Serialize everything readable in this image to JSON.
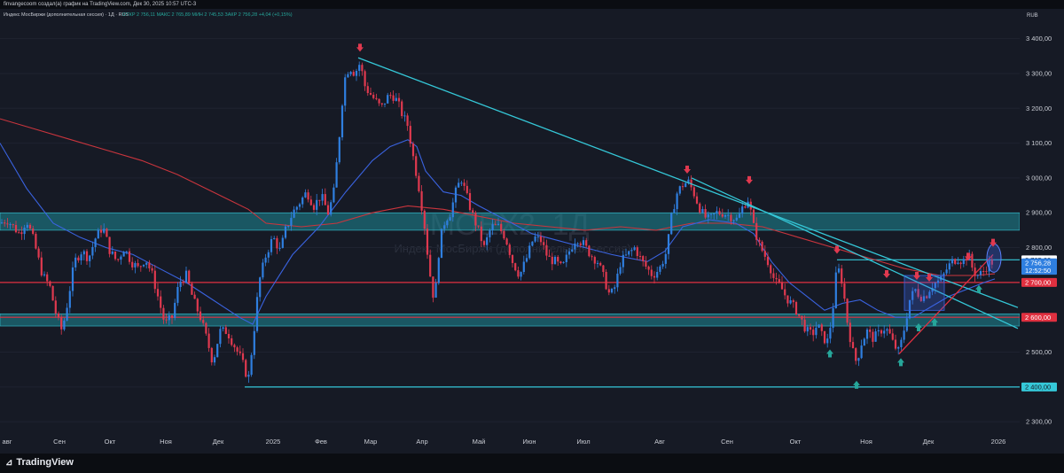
{
  "header": {
    "text": "finvangecoom создал(а) график на TradingView.com, Дек 30, 2025 10:57 UTC-3"
  },
  "legend": {
    "title": "Индекс МосБиржи (дополнительная сессия) · 1Д · RUS",
    "values": "ОТКР 2 756,11  МАКС 2 765,89  МИН 2 745,53  ЗАКР 2 756,28  +4,04 (+0,15%)"
  },
  "currency": "RUB",
  "watermark": {
    "symbol": "IMOEX2, 1Д",
    "name": "Индекс МосБиржи (дополнительная сессия)"
  },
  "footer": {
    "brand": "TradingView"
  },
  "colors": {
    "background": "#161a25",
    "up": "#2f7fe0",
    "down": "#e0394f",
    "trendline": "#35c8d8",
    "red_line": "#e03040",
    "zone_fill": "#1f8a97",
    "ma_fast": "#3a63e0",
    "ma_slow": "#c9353d"
  },
  "chart_data": {
    "type": "candlestick",
    "x_axis_labels": [
      "авг",
      "Сен",
      "Окт",
      "Ноя",
      "Дек",
      "2025",
      "Фев",
      "Мар",
      "Апр",
      "Май",
      "Июн",
      "Июл",
      "Авг",
      "Сен",
      "Окт",
      "Ноя",
      "Дек",
      "2026"
    ],
    "y_ticks": [
      "3 400,00",
      "3 300,00",
      "3 200,00",
      "3 100,00",
      "3 000,00",
      "2 900,00",
      "2 800,00",
      "2 700,00",
      "2 600,00",
      "2 500,00",
      "2 400,00",
      "2 300,00"
    ],
    "y_tick_values": [
      3400,
      3300,
      3200,
      3100,
      3000,
      2900,
      2800,
      2700,
      2600,
      2500,
      2400,
      2300
    ],
    "ylim": [
      2275,
      3455
    ],
    "price_labels": [
      {
        "text": "2 765,00",
        "value": 2765,
        "color": "#ffffff",
        "fg": "#161a25"
      },
      {
        "text": "2 756,28",
        "value": 2756.28,
        "color": "#2f7fe0",
        "fg": "#ffffff"
      },
      {
        "text": "12:52:50",
        "value": 2735,
        "color": "#2f7fe0",
        "fg": "#ffffff"
      },
      {
        "text": "2 700,00",
        "value": 2700,
        "color": "#e03040",
        "fg": "#ffffff"
      },
      {
        "text": "2 600,00",
        "value": 2600,
        "color": "#e03040",
        "fg": "#ffffff"
      },
      {
        "text": "2 400,00",
        "value": 2400,
        "color": "#35c8d8",
        "fg": "#161a25"
      }
    ],
    "price_path": [
      [
        0,
        2870
      ],
      [
        8,
        2880
      ],
      [
        15,
        2860
      ],
      [
        22,
        2840
      ],
      [
        30,
        2880
      ],
      [
        38,
        2820
      ],
      [
        48,
        2720
      ],
      [
        56,
        2690
      ],
      [
        64,
        2600
      ],
      [
        70,
        2560
      ],
      [
        76,
        2640
      ],
      [
        84,
        2760
      ],
      [
        92,
        2790
      ],
      [
        100,
        2770
      ],
      [
        108,
        2830
      ],
      [
        116,
        2860
      ],
      [
        124,
        2790
      ],
      [
        132,
        2760
      ],
      [
        140,
        2800
      ],
      [
        148,
        2760
      ],
      [
        156,
        2740
      ],
      [
        164,
        2770
      ],
      [
        172,
        2720
      ],
      [
        178,
        2660
      ],
      [
        186,
        2580
      ],
      [
        194,
        2600
      ],
      [
        202,
        2700
      ],
      [
        210,
        2720
      ],
      [
        218,
        2650
      ],
      [
        226,
        2600
      ],
      [
        234,
        2530
      ],
      [
        240,
        2470
      ],
      [
        248,
        2560
      ],
      [
        256,
        2560
      ],
      [
        264,
        2520
      ],
      [
        272,
        2480
      ],
      [
        280,
        2420
      ],
      [
        286,
        2550
      ],
      [
        292,
        2700
      ],
      [
        300,
        2780
      ],
      [
        308,
        2830
      ],
      [
        316,
        2790
      ],
      [
        322,
        2850
      ],
      [
        330,
        2900
      ],
      [
        338,
        2930
      ],
      [
        346,
        2960
      ],
      [
        354,
        2920
      ],
      [
        362,
        2950
      ],
      [
        370,
        2900
      ],
      [
        376,
        2950
      ],
      [
        382,
        3100
      ],
      [
        388,
        3280
      ],
      [
        394,
        3320
      ],
      [
        400,
        3300
      ],
      [
        406,
        3330
      ],
      [
        412,
        3260
      ],
      [
        418,
        3240
      ],
      [
        424,
        3220
      ],
      [
        430,
        3200
      ],
      [
        436,
        3230
      ],
      [
        442,
        3240
      ],
      [
        448,
        3220
      ],
      [
        454,
        3180
      ],
      [
        460,
        3150
      ],
      [
        466,
        3060
      ],
      [
        472,
        2980
      ],
      [
        478,
        2880
      ],
      [
        484,
        2740
      ],
      [
        490,
        2640
      ],
      [
        496,
        2820
      ],
      [
        502,
        2880
      ],
      [
        508,
        2900
      ],
      [
        514,
        2960
      ],
      [
        520,
        3000
      ],
      [
        526,
        2950
      ],
      [
        532,
        2900
      ],
      [
        538,
        2860
      ],
      [
        546,
        2800
      ],
      [
        554,
        2860
      ],
      [
        562,
        2860
      ],
      [
        570,
        2830
      ],
      [
        578,
        2760
      ],
      [
        586,
        2720
      ],
      [
        594,
        2770
      ],
      [
        602,
        2830
      ],
      [
        610,
        2820
      ],
      [
        618,
        2770
      ],
      [
        626,
        2760
      ],
      [
        634,
        2740
      ],
      [
        642,
        2790
      ],
      [
        650,
        2830
      ],
      [
        658,
        2810
      ],
      [
        666,
        2780
      ],
      [
        674,
        2760
      ],
      [
        680,
        2720
      ],
      [
        688,
        2660
      ],
      [
        694,
        2690
      ],
      [
        700,
        2760
      ],
      [
        708,
        2780
      ],
      [
        716,
        2800
      ],
      [
        724,
        2760
      ],
      [
        730,
        2740
      ],
      [
        736,
        2720
      ],
      [
        744,
        2740
      ],
      [
        752,
        2790
      ],
      [
        758,
        2900
      ],
      [
        764,
        2960
      ],
      [
        770,
        2980
      ],
      [
        776,
        2990
      ],
      [
        782,
        2960
      ],
      [
        788,
        2920
      ],
      [
        794,
        2890
      ],
      [
        800,
        2880
      ],
      [
        808,
        2900
      ],
      [
        816,
        2900
      ],
      [
        824,
        2890
      ],
      [
        832,
        2880
      ],
      [
        838,
        2920
      ],
      [
        844,
        2940
      ],
      [
        850,
        2860
      ],
      [
        856,
        2810
      ],
      [
        862,
        2780
      ],
      [
        868,
        2750
      ],
      [
        874,
        2700
      ],
      [
        880,
        2690
      ],
      [
        886,
        2660
      ],
      [
        892,
        2640
      ],
      [
        898,
        2620
      ],
      [
        904,
        2590
      ],
      [
        910,
        2560
      ],
      [
        916,
        2550
      ],
      [
        922,
        2580
      ],
      [
        928,
        2540
      ],
      [
        934,
        2530
      ],
      [
        940,
        2640
      ],
      [
        944,
        2750
      ],
      [
        950,
        2700
      ],
      [
        956,
        2580
      ],
      [
        962,
        2500
      ],
      [
        966,
        2470
      ],
      [
        972,
        2530
      ],
      [
        978,
        2560
      ],
      [
        984,
        2540
      ],
      [
        990,
        2550
      ],
      [
        996,
        2570
      ],
      [
        1002,
        2560
      ],
      [
        1008,
        2520
      ],
      [
        1014,
        2500
      ],
      [
        1020,
        2570
      ],
      [
        1026,
        2650
      ],
      [
        1032,
        2680
      ],
      [
        1038,
        2660
      ],
      [
        1044,
        2660
      ],
      [
        1050,
        2690
      ],
      [
        1056,
        2700
      ],
      [
        1062,
        2710
      ],
      [
        1068,
        2740
      ],
      [
        1074,
        2760
      ],
      [
        1080,
        2770
      ],
      [
        1086,
        2760
      ],
      [
        1092,
        2780
      ],
      [
        1098,
        2730
      ],
      [
        1104,
        2720
      ],
      [
        1110,
        2735
      ],
      [
        1116,
        2760
      ],
      [
        1122,
        2756
      ]
    ],
    "ma_fast": [
      [
        0,
        3100
      ],
      [
        30,
        2970
      ],
      [
        60,
        2870
      ],
      [
        90,
        2830
      ],
      [
        120,
        2800
      ],
      [
        150,
        2780
      ],
      [
        180,
        2740
      ],
      [
        210,
        2700
      ],
      [
        240,
        2650
      ],
      [
        270,
        2600
      ],
      [
        285,
        2580
      ],
      [
        300,
        2660
      ],
      [
        330,
        2780
      ],
      [
        360,
        2860
      ],
      [
        390,
        2960
      ],
      [
        420,
        3050
      ],
      [
        440,
        3090
      ],
      [
        460,
        3110
      ],
      [
        470,
        3090
      ],
      [
        480,
        3020
      ],
      [
        500,
        2960
      ],
      [
        520,
        2950
      ],
      [
        540,
        2920
      ],
      [
        570,
        2880
      ],
      [
        600,
        2840
      ],
      [
        630,
        2820
      ],
      [
        660,
        2800
      ],
      [
        690,
        2780
      ],
      [
        710,
        2770
      ],
      [
        730,
        2760
      ],
      [
        750,
        2790
      ],
      [
        770,
        2860
      ],
      [
        800,
        2880
      ],
      [
        830,
        2870
      ],
      [
        850,
        2840
      ],
      [
        870,
        2760
      ],
      [
        890,
        2700
      ],
      [
        910,
        2660
      ],
      [
        930,
        2620
      ],
      [
        950,
        2640
      ],
      [
        970,
        2650
      ],
      [
        990,
        2620
      ],
      [
        1010,
        2600
      ],
      [
        1030,
        2600
      ],
      [
        1050,
        2630
      ],
      [
        1070,
        2660
      ],
      [
        1090,
        2680
      ],
      [
        1110,
        2700
      ],
      [
        1122,
        2710
      ]
    ],
    "ma_slow": [
      [
        0,
        3170
      ],
      [
        40,
        3140
      ],
      [
        80,
        3110
      ],
      [
        120,
        3080
      ],
      [
        160,
        3050
      ],
      [
        200,
        3010
      ],
      [
        240,
        2960
      ],
      [
        280,
        2910
      ],
      [
        300,
        2870
      ],
      [
        340,
        2860
      ],
      [
        380,
        2870
      ],
      [
        420,
        2900
      ],
      [
        460,
        2920
      ],
      [
        500,
        2910
      ],
      [
        540,
        2890
      ],
      [
        580,
        2870
      ],
      [
        620,
        2860
      ],
      [
        660,
        2850
      ],
      [
        700,
        2860
      ],
      [
        740,
        2850
      ],
      [
        780,
        2870
      ],
      [
        820,
        2870
      ],
      [
        860,
        2860
      ],
      [
        900,
        2830
      ],
      [
        940,
        2800
      ],
      [
        980,
        2770
      ],
      [
        1020,
        2740
      ],
      [
        1060,
        2720
      ],
      [
        1100,
        2720
      ],
      [
        1122,
        2725
      ]
    ],
    "zones": [
      {
        "from": 2850,
        "to": 2900
      },
      {
        "from": 2575,
        "to": 2610
      }
    ],
    "horizontal_lines": [
      {
        "value": 2700,
        "color": "#e03040"
      },
      {
        "value": 2600,
        "color": "#e03040"
      },
      {
        "value": 2400,
        "color": "#35c8d8",
        "x_from": 276
      },
      {
        "value": 2765,
        "color": "#35c8d8",
        "x_from": 944
      }
    ],
    "trend_lines": [
      {
        "x1": 404,
        "y1": 3345,
        "x2": 1148,
        "y2": 2628
      },
      {
        "x1": 780,
        "y1": 3000,
        "x2": 1148,
        "y2": 2568
      },
      {
        "x1": 1014,
        "y1": 2495,
        "x2": 1120,
        "y2": 2780,
        "color": "#e03040"
      }
    ],
    "markers_down": [
      [
        406,
        3370
      ],
      [
        775,
        3020
      ],
      [
        845,
        2990
      ],
      [
        944,
        2790
      ],
      [
        1000,
        2720
      ],
      [
        1034,
        2715
      ],
      [
        1048,
        2710
      ],
      [
        1092,
        2770
      ],
      [
        1120,
        2810
      ]
    ],
    "markers_up": [
      [
        936,
        2500
      ],
      [
        966,
        2410
      ],
      [
        1016,
        2475
      ],
      [
        1036,
        2575
      ],
      [
        1054,
        2590
      ],
      [
        1104,
        2685
      ]
    ],
    "highlight_boxes": [
      {
        "x1": 1020,
        "x2": 1065,
        "y_top": 2720,
        "y_bottom": 2620
      }
    ]
  }
}
